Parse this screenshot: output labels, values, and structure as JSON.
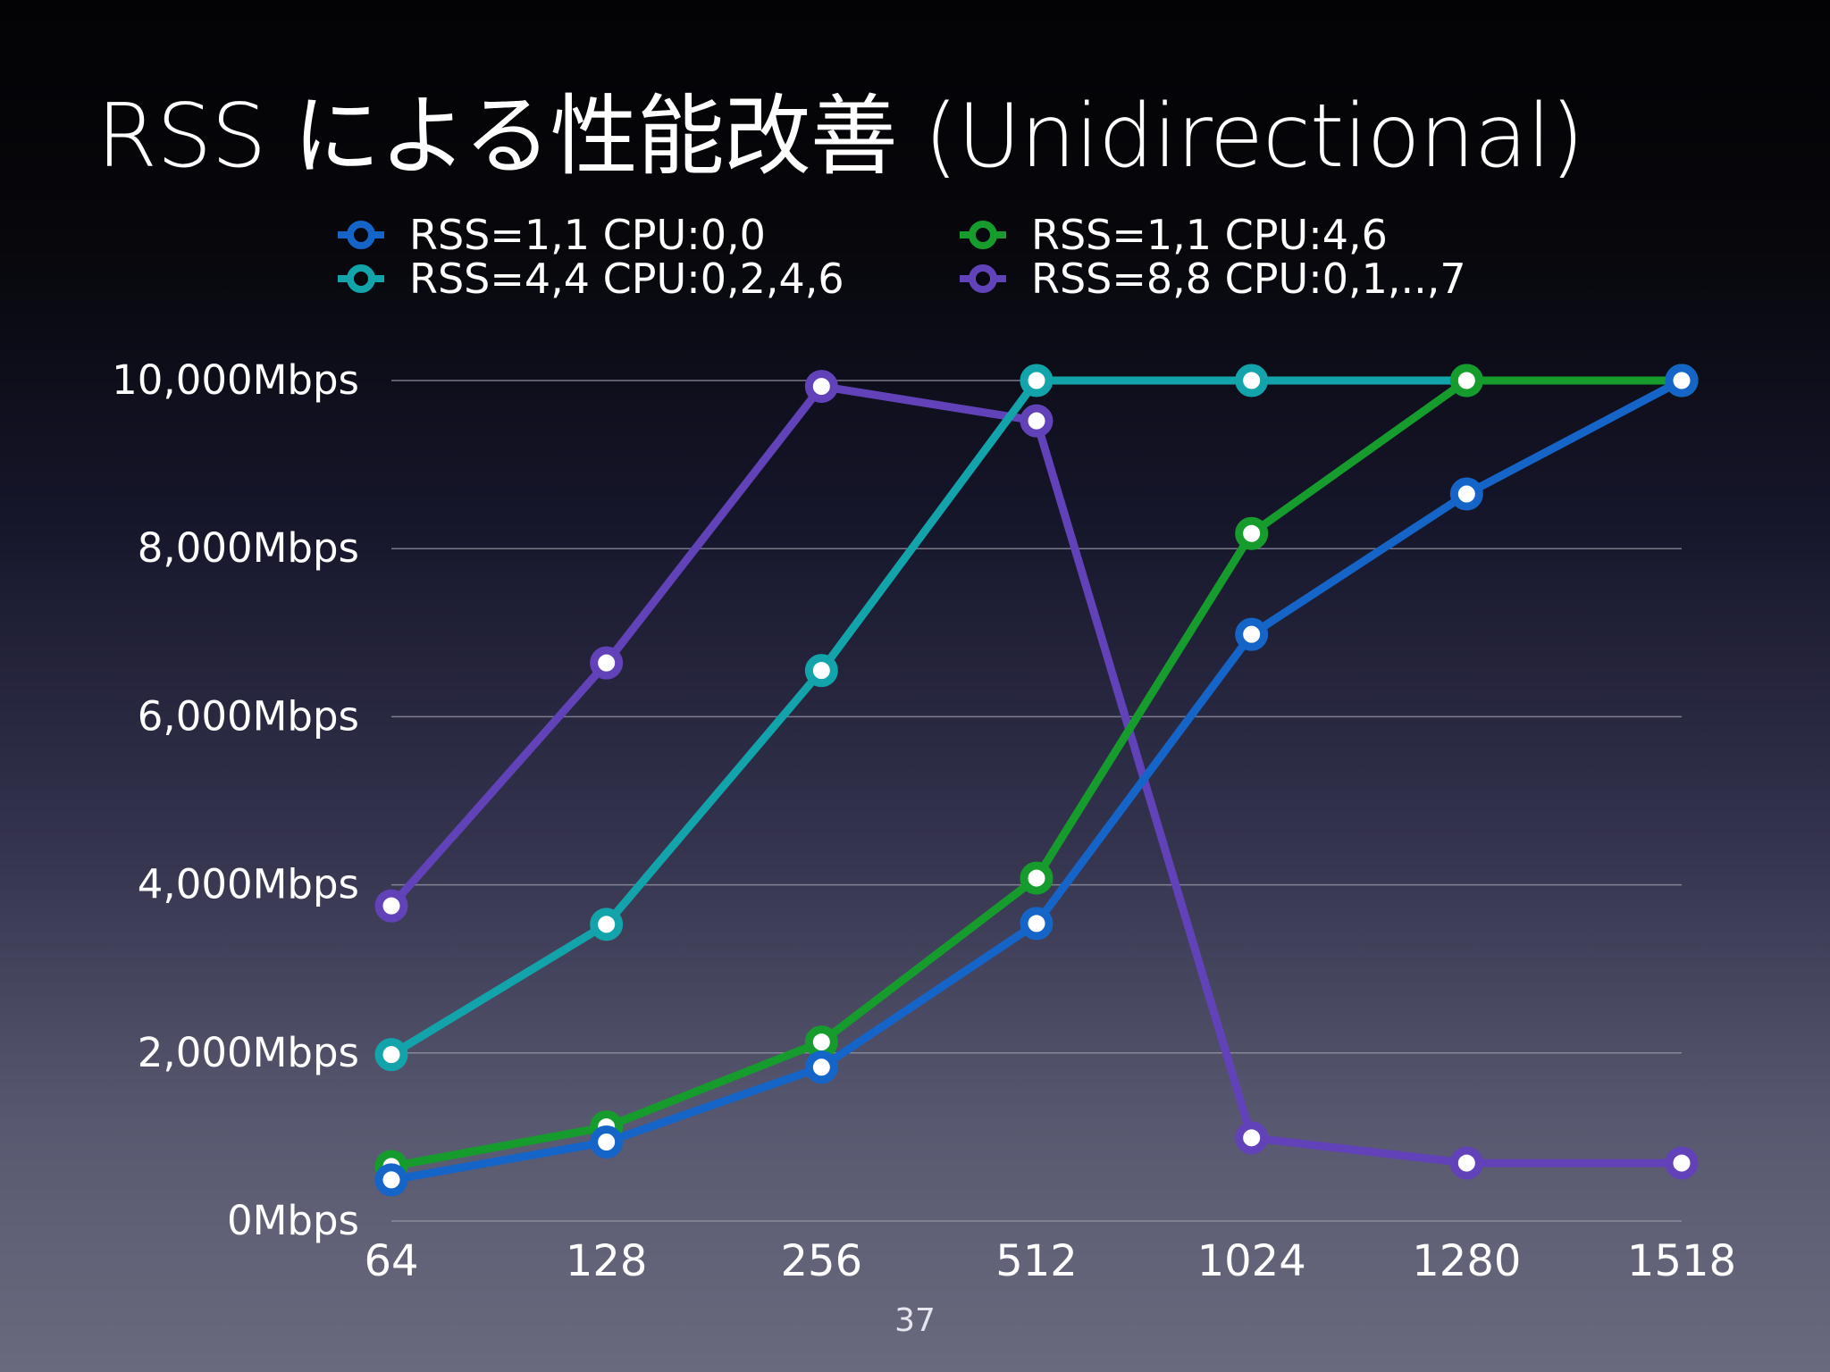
{
  "slide": {
    "title": "RSS による性能改善 (Unidirectional)",
    "page_number": "37"
  },
  "chart_data": {
    "type": "line",
    "title": "RSS による性能改善 (Unidirectional)",
    "xlabel": "",
    "ylabel": "",
    "categories": [
      "64",
      "128",
      "256",
      "512",
      "1024",
      "1280",
      "1518"
    ],
    "y_ticks": [
      "0Mbps",
      "2,000Mbps",
      "4,000Mbps",
      "6,000Mbps",
      "8,000Mbps",
      "10,000Mbps"
    ],
    "ylim": [
      0,
      10000
    ],
    "grid": true,
    "legend_position": "top",
    "series": [
      {
        "name": "RSS=1,1 CPU:0,0",
        "color": "#1565c8",
        "values": [
          490,
          940,
          1830,
          3540,
          6980,
          8650,
          10000
        ]
      },
      {
        "name": "RSS=1,1 CPU:4,6",
        "color": "#169c2c",
        "values": [
          650,
          1120,
          2130,
          4080,
          8180,
          10000,
          10000
        ]
      },
      {
        "name": "RSS=4,4 CPU:0,2,4,6",
        "color": "#13a3aa",
        "values": [
          1980,
          3530,
          6550,
          10000,
          10000,
          10000,
          10000
        ]
      },
      {
        "name": "RSS=8,8 CPU:0,1,..,7",
        "color": "#6242b8",
        "values": [
          3750,
          6640,
          9930,
          9520,
          990,
          690,
          690
        ]
      }
    ],
    "draw_order": [
      3,
      2,
      1,
      0
    ]
  }
}
